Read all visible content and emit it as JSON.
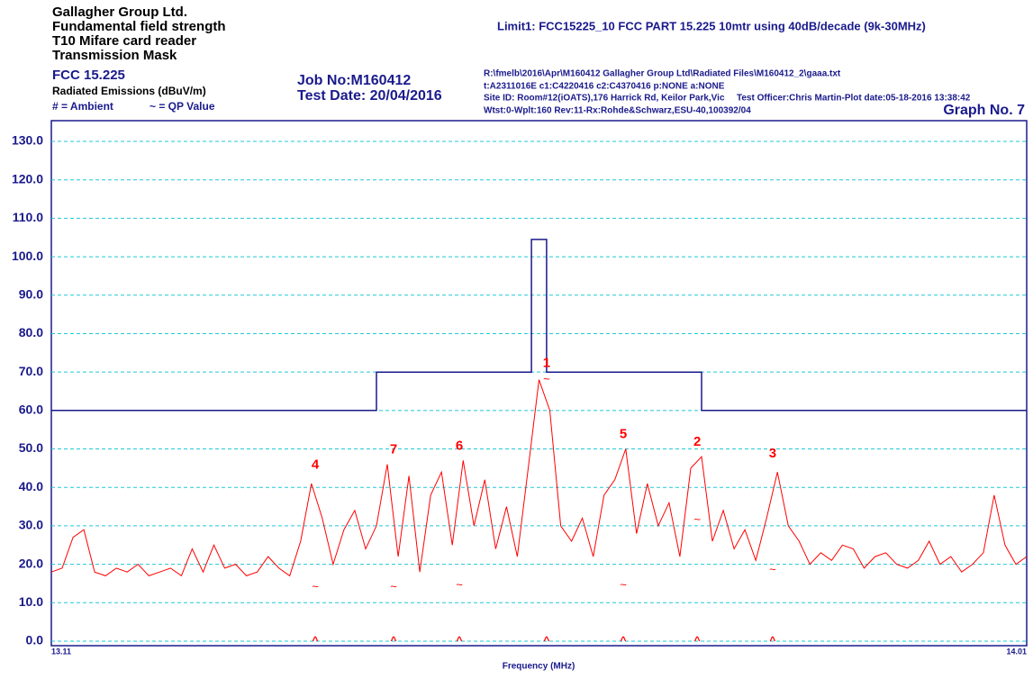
{
  "chart_data": {
    "type": "line",
    "header": {
      "company": "Gallagher Group Ltd.",
      "line2": "Fundamental field strength",
      "line3": "T10 Mifare card reader",
      "line4": "Transmission Mask",
      "standard": "FCC 15.225",
      "units": "Radiated Emissions (dBuV/m)",
      "ambient_key": "# = Ambient",
      "qp_key": "~ = QP Value",
      "job": "Job No:M160412",
      "test_date": "Test Date: 20/04/2016",
      "limit": "Limit1: FCC15225_10    FCC PART 15.225 10mtr using 40dB/decade (9k-30MHz)",
      "file": "R:\\fmelb\\2016\\Apr\\M160412 Gallagher Group Ltd\\Radiated Files\\M160412_2\\gaaa.txt",
      "setup": "t:A2311016E c1:C4220416  c2:C4370416 p:NONE a:NONE",
      "site": "Site ID: Room#12(iOATS),176 Harrick Rd, Keilor Park,Vic",
      "officer": "Test Officer:Chris Martin-Plot date:05-18-2016 13:38:42",
      "receiver": "Wtst:0-Wplt:160 Rev:11-Rx:Rohde&Schwarz,ESU-40,100392/04",
      "graph": "Graph No.  7"
    },
    "x_label": "Frequency (MHz)",
    "xlim": [
      13.11,
      14.01
    ],
    "xticks": [
      13.11,
      14.01
    ],
    "ylim": [
      0,
      130
    ],
    "yticks": [
      {
        "value": 0,
        "label": "0.0"
      },
      {
        "value": 10,
        "label": "10.0"
      },
      {
        "value": 20,
        "label": "20.0"
      },
      {
        "value": 30,
        "label": "30.0"
      },
      {
        "value": 40,
        "label": "40.0"
      },
      {
        "value": 50,
        "label": "50.0"
      },
      {
        "value": 60,
        "label": "60.0"
      },
      {
        "value": 70,
        "label": "70.0"
      },
      {
        "value": 80,
        "label": "80.0"
      },
      {
        "value": 90,
        "label": "90.0"
      },
      {
        "value": 100,
        "label": "100.0"
      },
      {
        "value": 110,
        "label": "110.0"
      },
      {
        "value": 120,
        "label": "120.0"
      },
      {
        "value": 130,
        "label": "130.0"
      }
    ],
    "grid": true,
    "grid_color": "#22c8d8",
    "series": [
      {
        "color": "#1a1a8c",
        "x": [
          13.11,
          13.41,
          13.41,
          13.553,
          13.553,
          13.567,
          13.567,
          13.71,
          13.71,
          14.01
        ],
        "values": [
          60,
          60,
          70,
          70,
          104.5,
          104.5,
          70,
          70,
          60,
          60
        ]
      },
      {
        "color": "#ff0000",
        "x": [
          13.11,
          13.12,
          13.13,
          13.14,
          13.15,
          13.16,
          13.17,
          13.18,
          13.19,
          13.2,
          13.21,
          13.22,
          13.23,
          13.24,
          13.25,
          13.26,
          13.27,
          13.28,
          13.29,
          13.3,
          13.31,
          13.32,
          13.33,
          13.34,
          13.35,
          13.36,
          13.37,
          13.38,
          13.39,
          13.4,
          13.41,
          13.42,
          13.43,
          13.44,
          13.45,
          13.46,
          13.47,
          13.48,
          13.49,
          13.5,
          13.51,
          13.52,
          13.53,
          13.54,
          13.55,
          13.56,
          13.57,
          13.58,
          13.59,
          13.6,
          13.61,
          13.62,
          13.63,
          13.64,
          13.65,
          13.66,
          13.67,
          13.68,
          13.69,
          13.7,
          13.71,
          13.72,
          13.73,
          13.74,
          13.75,
          13.76,
          13.77,
          13.78,
          13.79,
          13.8,
          13.81,
          13.82,
          13.83,
          13.84,
          13.85,
          13.86,
          13.87,
          13.88,
          13.89,
          13.9,
          13.91,
          13.92,
          13.93,
          13.94,
          13.95,
          13.96,
          13.97,
          13.98,
          13.99,
          14.0,
          14.01
        ],
        "values": [
          18,
          19,
          27,
          29,
          18,
          17,
          19,
          18,
          20,
          17,
          18,
          19,
          17,
          24,
          18,
          25,
          19,
          20,
          17,
          18,
          22,
          19,
          17,
          26,
          41,
          32,
          20,
          29,
          34,
          24,
          30,
          46,
          22,
          43,
          18,
          38,
          44,
          25,
          47,
          30,
          42,
          24,
          35,
          22,
          45,
          68,
          60,
          30,
          26,
          32,
          22,
          38,
          42,
          50,
          28,
          41,
          30,
          36,
          22,
          45,
          48,
          26,
          34,
          24,
          29,
          21,
          32,
          44,
          30,
          26,
          20,
          23,
          21,
          25,
          24,
          19,
          22,
          23,
          20,
          19,
          21,
          26,
          20,
          22,
          18,
          20,
          23,
          38,
          25,
          20,
          22
        ]
      }
    ],
    "peak_symbol": "^",
    "qp_symbol": "~",
    "markers": [
      {
        "label": "4",
        "x": 13.3535,
        "peak": 42,
        "qp": 14.5
      },
      {
        "label": "7",
        "x": 13.4258,
        "peak": 46,
        "qp": 14.5
      },
      {
        "label": "6",
        "x": 13.4865,
        "peak": 47,
        "qp": 15
      },
      {
        "label": "1",
        "x": 13.567,
        "peak": 68.5,
        "qp": 68.5
      },
      {
        "label": "5",
        "x": 13.6377,
        "peak": 50,
        "qp": 15
      },
      {
        "label": "2",
        "x": 13.706,
        "peak": 48,
        "qp": 32
      },
      {
        "label": "3",
        "x": 13.7756,
        "peak": 45,
        "qp": 19
      }
    ]
  }
}
